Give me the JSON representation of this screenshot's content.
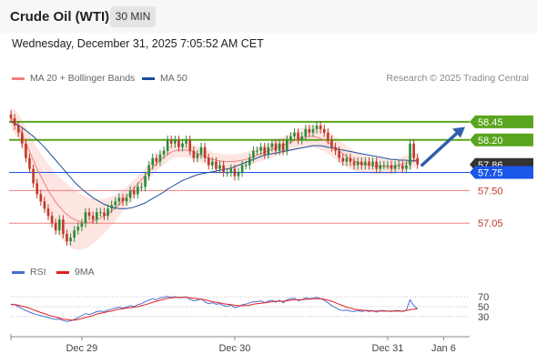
{
  "header": {
    "title": "Crude Oil (WTI)",
    "timeframe": "30 MIN",
    "datetime": "Wednesday, December 31, 2025 7:05:52 AM CET"
  },
  "legend": {
    "ma20_label": "MA 20 + Bollinger Bands",
    "ma50_label": "MA 50",
    "credit": "Research © 2025 Trading Central"
  },
  "rsi_legend": {
    "rsi_label": "RSI",
    "ma_label": "9MA"
  },
  "colors": {
    "resistance": "#5aa51e",
    "pivot": "#1a56e8",
    "support": "#f08080",
    "ma20": "#f08080",
    "ma50": "#1f4e9a",
    "bollinger_fill": "#fde0dc",
    "candle_up": "#2a8a3a",
    "candle_down": "#c0392b",
    "last_price": "#333333",
    "arrow": "#2f5fa8",
    "rsi": "#4a6fd0",
    "rsi_ma": "#e02020"
  },
  "chart_data": {
    "type": "candlestick",
    "y_range": [
      56.55,
      58.75
    ],
    "x_range": [
      0,
      122
    ],
    "x_ticks": [
      {
        "label": "Dec 29",
        "x": 19
      },
      {
        "label": "Dec 30",
        "x": 60
      },
      {
        "label": "Dec 31",
        "x": 101
      },
      {
        "label": "Jan 6",
        "x": 116
      }
    ],
    "levels": [
      {
        "label": "58.45",
        "value": 58.45,
        "kind": "resistance"
      },
      {
        "label": "58.20",
        "value": 58.2,
        "kind": "resistance"
      },
      {
        "label": "57.86",
        "value": 57.86,
        "kind": "last"
      },
      {
        "label": "57.75",
        "value": 57.75,
        "kind": "pivot"
      },
      {
        "label": "57.50",
        "value": 57.5,
        "kind": "support"
      },
      {
        "label": "57.05",
        "value": 57.05,
        "kind": "support"
      }
    ],
    "close": [
      58.5,
      58.4,
      58.3,
      58.15,
      57.95,
      57.8,
      57.6,
      57.45,
      57.35,
      57.25,
      57.15,
      57.05,
      56.95,
      57.1,
      56.9,
      56.8,
      56.85,
      56.95,
      57.0,
      57.05,
      57.2,
      57.15,
      57.1,
      57.2,
      57.2,
      57.15,
      57.25,
      57.3,
      57.35,
      57.4,
      57.35,
      57.4,
      57.5,
      57.45,
      57.55,
      57.55,
      57.7,
      57.85,
      57.95,
      57.9,
      58.0,
      58.05,
      58.2,
      58.15,
      58.2,
      58.1,
      58.15,
      58.2,
      58.05,
      57.95,
      58.0,
      58.1,
      57.95,
      57.85,
      57.9,
      57.8,
      57.85,
      57.75,
      57.75,
      57.8,
      57.7,
      57.75,
      57.85,
      57.85,
      57.95,
      58.05,
      58.05,
      58.1,
      58.0,
      58.1,
      58.15,
      58.05,
      58.15,
      58.05,
      58.2,
      58.25,
      58.3,
      58.2,
      58.25,
      58.35,
      58.3,
      58.35,
      58.4,
      58.35,
      58.3,
      58.2,
      58.1,
      58.05,
      57.95,
      57.9,
      57.95,
      57.9,
      57.85,
      57.9,
      57.85,
      57.9,
      57.85,
      57.9,
      57.8,
      57.85,
      57.85,
      57.85,
      57.8,
      57.85,
      57.85,
      57.8,
      57.85,
      58.15,
      57.95,
      57.86
    ],
    "ma20": [
      58.5,
      58.45,
      58.38,
      58.28,
      58.16,
      58.04,
      57.92,
      57.8,
      57.7,
      57.6,
      57.5,
      57.42,
      57.34,
      57.28,
      57.22,
      57.17,
      57.13,
      57.1,
      57.08,
      57.06,
      57.06,
      57.06,
      57.08,
      57.1,
      57.12,
      57.15,
      57.18,
      57.22,
      57.26,
      57.31,
      57.36,
      57.41,
      57.47,
      57.53,
      57.59,
      57.65,
      57.71,
      57.77,
      57.82,
      57.87,
      57.92,
      57.96,
      58.0,
      58.03,
      58.05,
      58.06,
      58.06,
      58.06,
      58.05,
      58.03,
      58.01,
      57.99,
      57.97,
      57.95,
      57.93,
      57.92,
      57.91,
      57.9,
      57.9,
      57.9,
      57.9,
      57.91,
      57.92,
      57.93,
      57.95,
      57.97,
      57.99,
      58.01,
      58.03,
      58.05,
      58.07,
      58.09,
      58.11,
      58.13,
      58.15,
      58.17,
      58.19,
      58.21,
      58.23,
      58.24,
      58.25,
      58.25,
      58.24,
      58.22,
      58.2,
      58.17,
      58.13,
      58.09,
      58.05,
      58.01,
      57.97,
      57.94,
      57.91,
      57.89,
      57.87,
      57.86,
      57.85,
      57.84,
      57.84,
      57.84,
      57.83,
      57.83,
      57.83,
      57.84,
      57.85,
      57.87,
      57.88,
      57.9,
      57.92,
      57.92
    ],
    "ma50": [
      58.45,
      58.43,
      58.4,
      58.37,
      58.33,
      58.29,
      58.25,
      58.2,
      58.15,
      58.1,
      58.04,
      57.98,
      57.92,
      57.86,
      57.8,
      57.74,
      57.68,
      57.62,
      57.57,
      57.52,
      57.48,
      57.44,
      57.4,
      57.37,
      57.34,
      57.31,
      57.29,
      57.27,
      57.26,
      57.25,
      57.25,
      57.25,
      57.26,
      57.27,
      57.29,
      57.31,
      57.33,
      57.36,
      57.39,
      57.42,
      57.45,
      57.48,
      57.52,
      57.55,
      57.58,
      57.61,
      57.64,
      57.66,
      57.68,
      57.7,
      57.72,
      57.73,
      57.74,
      57.75,
      57.76,
      57.77,
      57.78,
      57.79,
      57.8,
      57.81,
      57.83,
      57.85,
      57.87,
      57.89,
      57.91,
      57.93,
      57.95,
      57.97,
      57.99,
      58.0,
      58.01,
      58.02,
      58.03,
      58.04,
      58.05,
      58.06,
      58.07,
      58.08,
      58.09,
      58.1,
      58.11,
      58.12,
      58.12,
      58.12,
      58.11,
      58.1,
      58.09,
      58.08,
      58.07,
      58.06,
      58.05,
      58.04,
      58.03,
      58.02,
      58.01,
      58.0,
      57.99,
      57.98,
      57.97,
      57.96,
      57.95,
      57.94,
      57.93,
      57.93,
      57.92,
      57.92,
      57.92,
      57.91,
      57.91,
      57.91
    ],
    "rsi_range": [
      15,
      85
    ],
    "rsi_ticks": [
      70,
      50,
      30
    ],
    "rsi": [
      55,
      54,
      50,
      46,
      42,
      39,
      36,
      34,
      32,
      30,
      28,
      26,
      24,
      25,
      22,
      20,
      21,
      24,
      28,
      32,
      36,
      34,
      37,
      40,
      41,
      40,
      43,
      45,
      47,
      49,
      47,
      49,
      52,
      50,
      54,
      56,
      60,
      63,
      66,
      64,
      68,
      69,
      71,
      69,
      70,
      68,
      69,
      70,
      65,
      62,
      63,
      66,
      60,
      56,
      58,
      55,
      56,
      52,
      51,
      53,
      48,
      50,
      54,
      55,
      58,
      60,
      60,
      62,
      58,
      61,
      63,
      59,
      63,
      58,
      64,
      66,
      67,
      62,
      64,
      68,
      66,
      67,
      69,
      66,
      63,
      58,
      52,
      48,
      44,
      42,
      43,
      41,
      40,
      42,
      40,
      42,
      40,
      42,
      39,
      42,
      42,
      41,
      40,
      42,
      42,
      40,
      43,
      64,
      52,
      46
    ],
    "rsi_ma": [
      54,
      54,
      53,
      51,
      49,
      47,
      44,
      41,
      38,
      36,
      33,
      31,
      29,
      27,
      25,
      24,
      23,
      23,
      24,
      26,
      28,
      30,
      32,
      35,
      37,
      38,
      40,
      41,
      43,
      45,
      46,
      47,
      48,
      49,
      50,
      52,
      54,
      56,
      59,
      61,
      63,
      65,
      67,
      68,
      69,
      69,
      69,
      69,
      68,
      67,
      66,
      65,
      64,
      62,
      60,
      59,
      58,
      56,
      55,
      54,
      53,
      52,
      52,
      52,
      53,
      55,
      56,
      57,
      58,
      59,
      60,
      61,
      61,
      61,
      62,
      63,
      64,
      64,
      64,
      65,
      65,
      66,
      66,
      66,
      65,
      63,
      61,
      58,
      55,
      52,
      49,
      47,
      45,
      44,
      43,
      42,
      42,
      41,
      41,
      41,
      41,
      41,
      41,
      41,
      41,
      41,
      42,
      44,
      45,
      46
    ]
  }
}
